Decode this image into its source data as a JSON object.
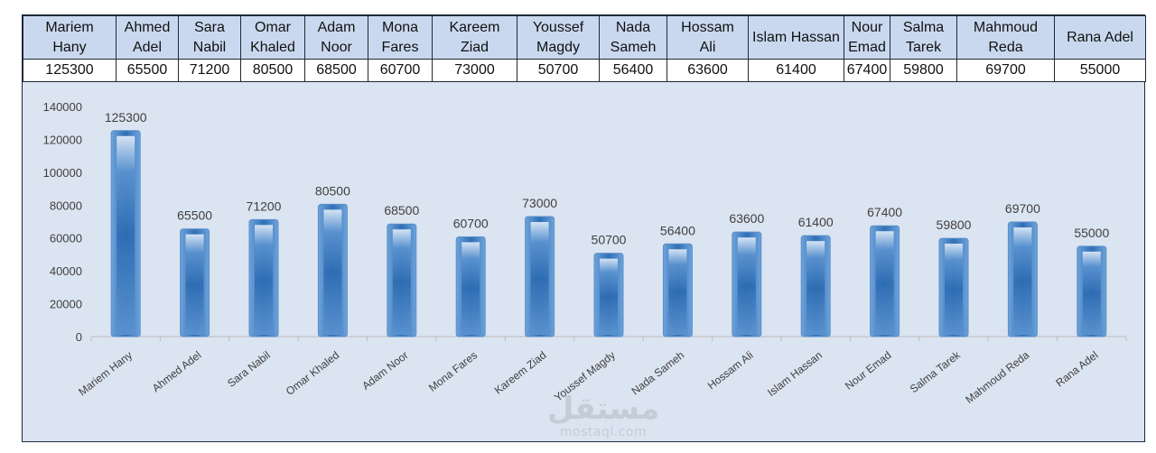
{
  "table": {
    "headers": [
      "Mariem\nHany",
      "Ahmed\nAdel",
      "Sara\nNabil",
      "Omar\nKhaled",
      "Adam\nNoor",
      "Mona\nFares",
      "Kareem\nZiad",
      "Youssef\nMagdy",
      "Nada\nSameh",
      "Hossam\nAli",
      "Islam Hassan",
      "Nour\nEmad",
      "Salma\nTarek",
      "Mahmoud\nReda",
      "Rana Adel"
    ],
    "values": [
      "125300",
      "65500",
      "71200",
      "80500",
      "68500",
      "60700",
      "73000",
      "50700",
      "56400",
      "63600",
      "61400",
      "67400",
      "59800",
      "69700",
      "55000"
    ]
  },
  "chart_data": {
    "type": "bar",
    "title": "",
    "xlabel": "",
    "ylabel": "",
    "categories": [
      "Mariem Hany",
      "Ahmed Adel",
      "Sara Nabil",
      "Omar Khaled",
      "Adam Noor",
      "Mona Fares",
      "Kareem Ziad",
      "Youssef Magdy",
      "Nada Sameh",
      "Hossam Ali",
      "Islam Hassan",
      "Nour Emad",
      "Salma Tarek",
      "Mahmoud Reda",
      "Rana Adel"
    ],
    "values": [
      125300,
      65500,
      71200,
      80500,
      68500,
      60700,
      73000,
      50700,
      56400,
      63600,
      61400,
      67400,
      59800,
      69700,
      55000
    ],
    "ylim": [
      0,
      140000
    ],
    "yticks": [
      0,
      20000,
      40000,
      60000,
      80000,
      100000,
      120000,
      140000
    ],
    "grid": false,
    "colors": {
      "bar": "#3b7fc4",
      "bar_dark": "#2d6cb0",
      "bar_light": "#a9c8ea",
      "text": "#404040",
      "axis": "#bcbcbc",
      "background": "#dbe4f1"
    }
  },
  "watermark": {
    "arabic": "مستقل",
    "latin": "mostaql.com"
  }
}
